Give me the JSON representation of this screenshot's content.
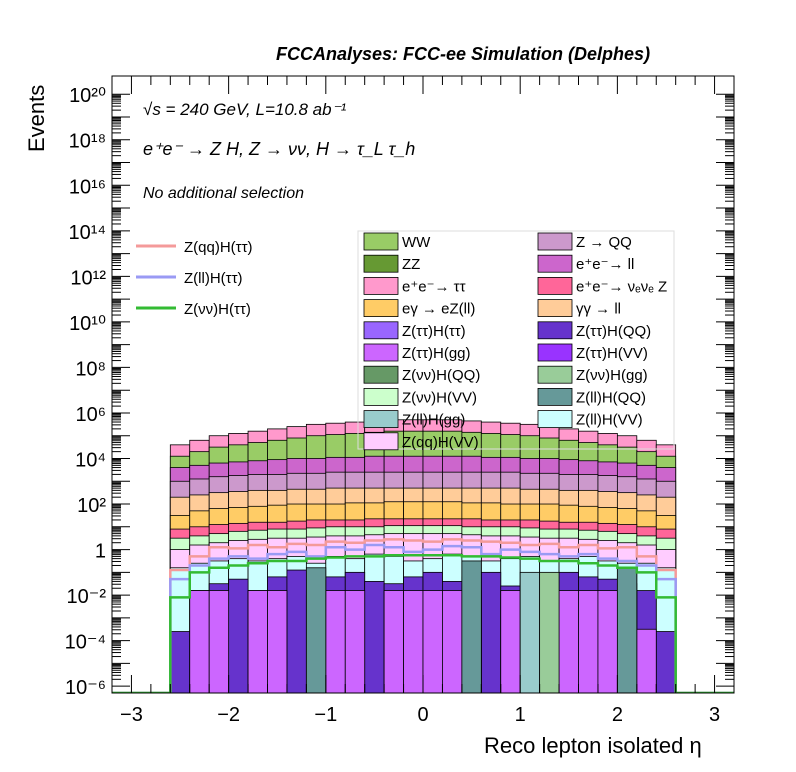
{
  "chart_data": {
    "type": "area",
    "title": "FCCAnalyses: FCC-ee Simulation (Delphes)",
    "xlabel": "Reco lepton isolated η",
    "ylabel": "Events",
    "xlim": [
      -3.2,
      3.2
    ],
    "ylim_log10": [
      -6.3,
      20.8
    ],
    "y_scale": "log",
    "annotations": {
      "line1": "√s = 240 GeV, L=10.8 ab⁻¹",
      "line2": "e⁺e⁻ → Z H, Z → νν, H → τ_L τ_h",
      "line3": "No additional selection"
    },
    "x_ticks": [
      "−3",
      "−2",
      "−1",
      "0",
      "1",
      "2",
      "3"
    ],
    "y_ticks": [
      "10⁻⁶",
      "10⁻⁴",
      "10⁻²",
      "1",
      "10²",
      "10⁴",
      "10⁶",
      "10⁸",
      "10¹⁰",
      "10¹²",
      "10¹⁴",
      "10¹⁶",
      "10¹⁸",
      "10²⁰"
    ],
    "signal_legend": [
      {
        "name": "Z(qq)H(ττ)",
        "color": "#f49a9a"
      },
      {
        "name": "Z(ll)H(ττ)",
        "color": "#9a9af4"
      },
      {
        "name": "Z(νν)H(ττ)",
        "color": "#33bb33"
      }
    ],
    "bkg_legend": [
      {
        "name": "WW",
        "color": "#99cc66"
      },
      {
        "name": "Z → QQ",
        "color": "#cc99cc"
      },
      {
        "name": "ZZ",
        "color": "#669933"
      },
      {
        "name": "e⁺e⁻→ ll",
        "color": "#cc66cc"
      },
      {
        "name": "e⁺e⁻→ ττ",
        "color": "#ff99cc"
      },
      {
        "name": "e⁺e⁻→ νₑνₑ Z",
        "color": "#ff6699"
      },
      {
        "name": "eγ → eZ(ll)",
        "color": "#ffcc66"
      },
      {
        "name": "γγ → ll",
        "color": "#ffcc99"
      },
      {
        "name": "Z(ττ)H(ττ)",
        "color": "#9966ff"
      },
      {
        "name": "Z(ττ)H(QQ)",
        "color": "#6633cc"
      },
      {
        "name": "Z(ττ)H(gg)",
        "color": "#cc66ff"
      },
      {
        "name": "Z(ττ)H(VV)",
        "color": "#9933ff"
      },
      {
        "name": "Z(νν)H(QQ)",
        "color": "#669966"
      },
      {
        "name": "Z(νν)H(gg)",
        "color": "#99cc99"
      },
      {
        "name": "Z(νν)H(VV)",
        "color": "#ccffcc"
      },
      {
        "name": "Z(ll)H(QQ)",
        "color": "#669999"
      },
      {
        "name": "Z(ll)H(gg)",
        "color": "#99cccc"
      },
      {
        "name": "Z(ll)H(VV)",
        "color": "#ccffff"
      },
      {
        "name": "Z(qq)H(VV)",
        "color": "#ffccff"
      }
    ],
    "bin_edges": [
      -2.6,
      -2.4,
      -2.2,
      -2.0,
      -1.8,
      -1.6,
      -1.4,
      -1.2,
      -1.0,
      -0.8,
      -0.6,
      -0.4,
      -0.2,
      0.0,
      0.2,
      0.4,
      0.6,
      0.8,
      1.0,
      1.2,
      1.4,
      1.6,
      1.8,
      2.0,
      2.2,
      2.4,
      2.6
    ],
    "stack_top_log10": [
      4.6,
      4.8,
      5.0,
      5.1,
      5.2,
      5.3,
      5.4,
      5.5,
      5.55,
      5.6,
      5.65,
      5.7,
      5.7,
      5.7,
      5.7,
      5.65,
      5.6,
      5.55,
      5.5,
      5.4,
      5.3,
      5.2,
      5.1,
      5.0,
      4.8,
      4.6
    ],
    "layer_tops_log10": {
      "e⁺e⁻→ ττ": [
        4.6,
        4.8,
        5.0,
        5.1,
        5.2,
        5.3,
        5.4,
        5.5,
        5.55,
        5.6,
        5.65,
        5.7,
        5.7,
        5.7,
        5.7,
        5.65,
        5.6,
        5.55,
        5.5,
        5.4,
        5.3,
        5.2,
        5.1,
        5.0,
        4.8,
        4.6
      ],
      "WW": [
        4.1,
        4.3,
        4.5,
        4.6,
        4.7,
        4.8,
        4.9,
        5.0,
        5.05,
        5.1,
        5.15,
        5.2,
        5.2,
        5.2,
        5.2,
        5.15,
        5.1,
        5.05,
        5.0,
        4.9,
        4.8,
        4.7,
        4.6,
        4.5,
        4.3,
        4.1
      ],
      "e⁺e⁻→ ll": [
        3.6,
        3.7,
        3.8,
        3.85,
        3.9,
        3.95,
        4.0,
        4.0,
        4.05,
        4.05,
        4.1,
        4.1,
        4.1,
        4.1,
        4.1,
        4.1,
        4.05,
        4.05,
        4.0,
        4.0,
        3.95,
        3.9,
        3.85,
        3.8,
        3.7,
        3.6
      ],
      "Z → QQ": [
        3.0,
        3.1,
        3.2,
        3.25,
        3.3,
        3.3,
        3.35,
        3.35,
        3.4,
        3.4,
        3.4,
        3.4,
        3.4,
        3.4,
        3.4,
        3.4,
        3.4,
        3.4,
        3.35,
        3.35,
        3.3,
        3.3,
        3.25,
        3.2,
        3.1,
        3.0
      ],
      "γγ → ll": [
        2.3,
        2.4,
        2.5,
        2.55,
        2.6,
        2.6,
        2.65,
        2.65,
        2.7,
        2.7,
        2.7,
        2.7,
        2.7,
        2.7,
        2.7,
        2.7,
        2.7,
        2.7,
        2.65,
        2.65,
        2.6,
        2.6,
        2.55,
        2.5,
        2.4,
        2.3
      ],
      "eγ → eZ(ll)": [
        1.5,
        1.7,
        1.8,
        1.85,
        1.9,
        1.95,
        2.0,
        2.0,
        2.0,
        2.05,
        2.05,
        2.1,
        2.1,
        2.1,
        2.1,
        2.05,
        2.05,
        2.0,
        2.0,
        2.0,
        1.95,
        1.9,
        1.85,
        1.8,
        1.7,
        1.5
      ],
      "e⁺e⁻→ νₑνₑ Z": [
        0.9,
        1.0,
        1.1,
        1.15,
        1.2,
        1.2,
        1.25,
        1.3,
        1.3,
        1.3,
        1.35,
        1.35,
        1.35,
        1.35,
        1.35,
        1.35,
        1.3,
        1.3,
        1.3,
        1.25,
        1.2,
        1.2,
        1.15,
        1.1,
        1.0,
        0.9
      ],
      "Z(νν)H(VV)": [
        0.5,
        0.6,
        0.7,
        0.8,
        0.85,
        0.9,
        0.9,
        0.95,
        1.0,
        1.0,
        1.0,
        1.05,
        1.05,
        1.05,
        1.05,
        1.0,
        1.0,
        1.0,
        0.95,
        0.9,
        0.9,
        0.85,
        0.8,
        0.7,
        0.6,
        0.5
      ],
      "Z(qq)H(VV)": [
        0.0,
        0.2,
        0.3,
        0.4,
        0.45,
        0.5,
        0.5,
        0.55,
        0.6,
        0.6,
        0.65,
        0.7,
        0.7,
        0.7,
        0.7,
        0.65,
        0.6,
        0.6,
        0.55,
        0.5,
        0.5,
        0.45,
        0.4,
        0.3,
        0.2,
        0.0
      ],
      "Z(ll)H(VV)": [
        -0.8,
        -0.6,
        -0.5,
        -0.4,
        -0.5,
        -0.4,
        -0.3,
        -0.6,
        -0.3,
        -0.4,
        -0.2,
        -0.3,
        -0.5,
        -0.4,
        -0.2,
        -0.3,
        -0.5,
        -0.4,
        -0.3,
        -0.5,
        -0.4,
        -0.3,
        -0.5,
        -0.6,
        -0.6,
        -0.8
      ],
      "Z(ττ)H(QQ)": [
        -3.6,
        -1.8,
        -1.5,
        -1.3,
        -1.8,
        -1.2,
        -0.9,
        -2.0,
        -1.2,
        -1.0,
        -1.4,
        -1.5,
        -1.2,
        -1.0,
        -1.4,
        -1.2,
        -1.0,
        -1.6,
        -1.5,
        -1.4,
        -1.0,
        -1.2,
        -1.3,
        -1.5,
        -1.8,
        -3.6
      ],
      "Z(ττ)H(gg)": [
        -6.3,
        -1.8,
        -1.8,
        -6.3,
        -1.8,
        -1.8,
        -6.3,
        -1.8,
        -1.8,
        -1.8,
        -6.3,
        -1.8,
        -1.8,
        -1.8,
        -1.8,
        -1.8,
        -6.3,
        -1.8,
        -1.8,
        -1.8,
        -1.8,
        -1.8,
        -1.8,
        -1.8,
        -3.5,
        -6.3
      ],
      "Z(ll)H(QQ)": [
        -6.3,
        -6.3,
        -6.3,
        -6.3,
        -6.3,
        -6.3,
        -6.3,
        -0.8,
        -6.3,
        -6.3,
        -6.3,
        -6.3,
        -6.3,
        -6.3,
        -6.3,
        -0.5,
        -6.3,
        -6.3,
        -6.3,
        -6.3,
        -6.3,
        -6.3,
        -6.3,
        -0.8,
        -6.3,
        -6.3
      ],
      "Z(ll)H(gg)": [
        -6.3,
        -6.3,
        -6.3,
        -6.3,
        -6.3,
        -6.3,
        -6.3,
        -6.3,
        -6.3,
        -6.3,
        -6.3,
        -6.3,
        -6.3,
        -6.3,
        -6.3,
        -6.3,
        -6.3,
        -6.3,
        -1.0,
        -6.3,
        -6.3,
        -6.3,
        -6.3,
        -6.3,
        -6.3,
        -6.3
      ],
      "Z(νν)H(gg)": [
        -6.3,
        -6.3,
        -6.3,
        -6.3,
        -6.3,
        -6.3,
        -6.3,
        -6.3,
        -6.3,
        -6.3,
        -6.3,
        -6.3,
        -6.3,
        -6.3,
        -6.3,
        -6.3,
        -6.3,
        -6.3,
        -6.3,
        -1.0,
        -6.3,
        -6.3,
        -6.3,
        -6.3,
        -6.3,
        -6.3
      ]
    },
    "signal_lines_log10": {
      "Z(qq)H(ττ)": [
        -0.9,
        -0.3,
        0.1,
        0.05,
        0.2,
        0.1,
        0.25,
        0.2,
        0.35,
        0.3,
        0.4,
        0.45,
        0.4,
        0.35,
        0.45,
        0.4,
        0.35,
        0.3,
        0.2,
        0.25,
        0.1,
        0.2,
        0.05,
        0.1,
        -0.3,
        -0.9
      ],
      "Z(ll)H(ττ)": [
        -1.3,
        -0.7,
        -0.4,
        -0.3,
        -0.4,
        -0.2,
        -0.1,
        -0.3,
        0.1,
        0.0,
        0.2,
        0.1,
        -0.1,
        0.0,
        0.15,
        0.1,
        -0.2,
        0.0,
        -0.1,
        -0.2,
        -0.3,
        -0.2,
        -0.4,
        -0.5,
        -0.7,
        -1.3
      ],
      "Z(νν)H(ττ)": [
        -2.1,
        -1.0,
        -0.8,
        -0.7,
        -0.6,
        -0.5,
        -0.5,
        -0.4,
        -0.35,
        -0.3,
        -0.3,
        -0.25,
        -0.25,
        -0.25,
        -0.25,
        -0.3,
        -0.3,
        -0.35,
        -0.4,
        -0.5,
        -0.5,
        -0.6,
        -0.7,
        -0.8,
        -1.0,
        -2.1
      ]
    }
  }
}
